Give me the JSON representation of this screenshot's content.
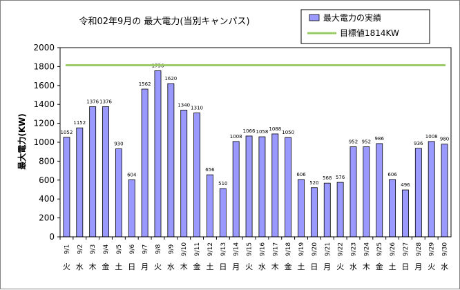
{
  "chart_data": {
    "type": "bar",
    "title": "令和02年9月の 最大電力(当別キャンパス)",
    "ylabel": "最大電力(KW)",
    "xlabel": "",
    "ylim": [
      0,
      2000
    ],
    "yticks": [
      0,
      200,
      400,
      600,
      800,
      1000,
      1200,
      1400,
      1600,
      1800,
      2000
    ],
    "grid": false,
    "legend_position": "top-right",
    "categories": [
      "9/1",
      "9/2",
      "9/3",
      "9/4",
      "9/5",
      "9/6",
      "9/7",
      "9/8",
      "9/9",
      "9/10",
      "9/11",
      "9/12",
      "9/13",
      "9/14",
      "9/15",
      "9/16",
      "9/17",
      "9/18",
      "9/19",
      "9/20",
      "9/21",
      "9/22",
      "9/23",
      "9/24",
      "9/25",
      "9/26",
      "9/27",
      "9/28",
      "9/29",
      "9/30"
    ],
    "weekdays": [
      "火",
      "水",
      "木",
      "金",
      "土",
      "日",
      "月",
      "火",
      "水",
      "木",
      "金",
      "土",
      "日",
      "月",
      "火",
      "水",
      "木",
      "金",
      "土",
      "日",
      "月",
      "火",
      "水",
      "木",
      "金",
      "土",
      "日",
      "月",
      "火",
      "水"
    ],
    "series": [
      {
        "name": "最大電力の実績",
        "color": "#9999ff",
        "values": [
          1052,
          1152,
          1376,
          1376,
          930,
          604,
          1562,
          1756,
          1620,
          1340,
          1310,
          656,
          510,
          1008,
          1066,
          1058,
          1088,
          1050,
          606,
          520,
          568,
          576,
          952,
          952,
          986,
          606,
          496,
          936,
          1008,
          980
        ]
      }
    ],
    "target_line": {
      "name": "目標値1814KW",
      "value": 1814,
      "color": "#99cc66"
    }
  }
}
